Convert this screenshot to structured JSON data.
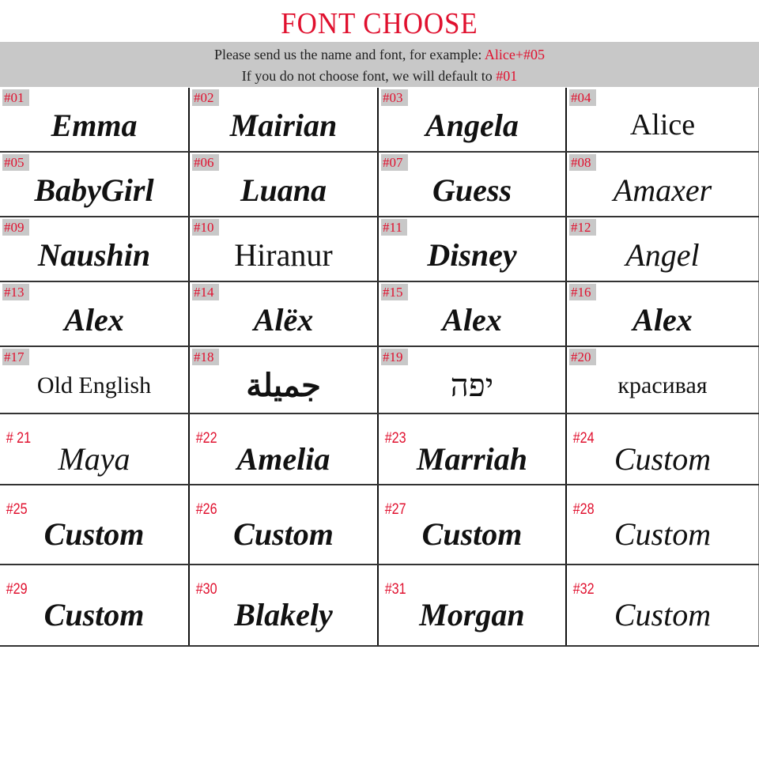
{
  "title": "FONT CHOOSE",
  "banner": {
    "line1": "Please send us the name and font, for example: ",
    "line1_example": "Alice+#05",
    "line2": "If you do not choose  font, we will default to ",
    "line2_default": "#01"
  },
  "colors": {
    "accent": "#e0102e",
    "label_bg": "#c8c8c8"
  },
  "fonts": [
    {
      "num": "#01",
      "sample": "Emma"
    },
    {
      "num": "#02",
      "sample": "Mairian"
    },
    {
      "num": "#03",
      "sample": "Angela"
    },
    {
      "num": "#04",
      "sample": "Alice"
    },
    {
      "num": "#05",
      "sample": "BabyGirl"
    },
    {
      "num": "#06",
      "sample": "Luana"
    },
    {
      "num": "#07",
      "sample": "Guess"
    },
    {
      "num": "#08",
      "sample": "Amaxer"
    },
    {
      "num": "#09",
      "sample": "Naushin"
    },
    {
      "num": "#10",
      "sample": "Hiranur"
    },
    {
      "num": "#11",
      "sample": "Disney"
    },
    {
      "num": "#12",
      "sample": "Angel"
    },
    {
      "num": "#13",
      "sample": "Alex"
    },
    {
      "num": "#14",
      "sample": "Alëx"
    },
    {
      "num": "#15",
      "sample": "Alex"
    },
    {
      "num": "#16",
      "sample": "Alex"
    },
    {
      "num": "#17",
      "sample": "Old English"
    },
    {
      "num": "#18",
      "sample": "جميلة"
    },
    {
      "num": "#19",
      "sample": "יפה"
    },
    {
      "num": "#20",
      "sample": "красивая"
    },
    {
      "num": "# 21",
      "sample": "Maya"
    },
    {
      "num": "#22",
      "sample": "Amelia"
    },
    {
      "num": "#23",
      "sample": "Marriah"
    },
    {
      "num": "#24",
      "sample": "Custom"
    },
    {
      "num": "#25",
      "sample": "Custom"
    },
    {
      "num": "#26",
      "sample": "Custom"
    },
    {
      "num": "#27",
      "sample": "Custom"
    },
    {
      "num": "#28",
      "sample": "Custom"
    },
    {
      "num": "#29",
      "sample": "Custom"
    },
    {
      "num": "#30",
      "sample": "Blakely"
    },
    {
      "num": "#31",
      "sample": "Morgan"
    },
    {
      "num": "#32",
      "sample": "Custom"
    }
  ]
}
